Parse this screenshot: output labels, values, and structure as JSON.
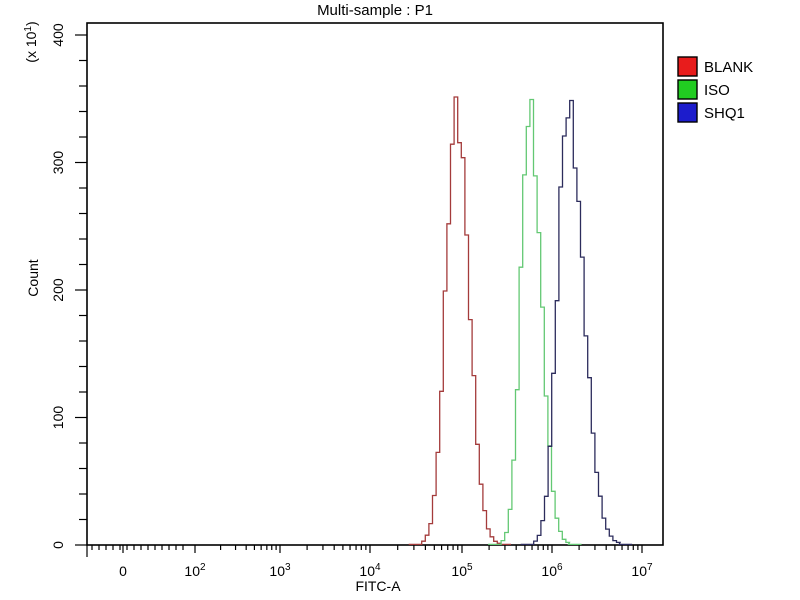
{
  "page": {
    "background": "#ffffff"
  },
  "chart_data": {
    "type": "histogram-overlay",
    "title": "Multi-sample : P1",
    "xlabel": "FITC-A",
    "ylabel": "Count",
    "y_axis_unit": {
      "prefix": "(x 10",
      "exp": "1",
      "suffix": ")"
    },
    "x_scale": "biexponential-log",
    "x_axis": {
      "zero_label": "0",
      "base": "10",
      "decade_exponents": [
        "2",
        "3",
        "4",
        "5",
        "6",
        "7"
      ]
    },
    "y_axis": {
      "ticks": [
        "0",
        "100",
        "200",
        "300",
        "400"
      ],
      "tick_values": [
        0,
        100,
        200,
        300,
        400
      ],
      "minor_step": 20,
      "lim": [
        0,
        400
      ],
      "unit_multiplier": 10
    },
    "grid": false,
    "legend_position": "top-right",
    "series": [
      {
        "name": "BLANK",
        "swatch_color": "#e81c1c",
        "line_color": "#a43b3b",
        "median_fitc": 87000,
        "peak_count": 3400,
        "sigma_left_decades": 0.117,
        "sigma_right_decades": 0.138
      },
      {
        "name": "ISO",
        "swatch_color": "#21cc21",
        "line_color": "#63c873",
        "median_fitc": 560000,
        "peak_count": 3410,
        "sigma_left_decades": 0.095,
        "sigma_right_decades": 0.13
      },
      {
        "name": "SHQ1",
        "swatch_color": "#1c1ccc",
        "line_color": "#2c2c5c",
        "median_fitc": 1500000,
        "peak_count": 3430,
        "sigma_left_decades": 0.115,
        "sigma_right_decades": 0.17
      }
    ]
  }
}
